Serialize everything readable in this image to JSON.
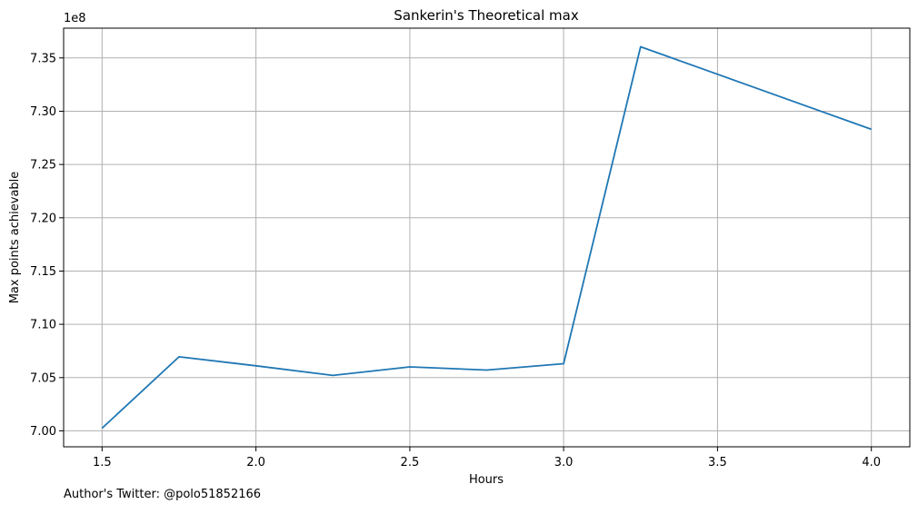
{
  "chart_data": {
    "type": "line",
    "title": "Sankerin's Theoretical max",
    "xlabel": "Hours",
    "ylabel": "Max points achievable",
    "y_offset_label": "1e8",
    "x": [
      1.5,
      1.75,
      2.0,
      2.25,
      2.5,
      2.75,
      3.0,
      3.25,
      4.0
    ],
    "y": [
      700250000,
      706950000,
      706100000,
      705200000,
      706000000,
      705700000,
      706300000,
      736050000,
      728300000
    ],
    "xlim": [
      1.375,
      4.125
    ],
    "ylim": [
      698500000,
      737800000
    ],
    "x_ticks": [
      1.5,
      2.0,
      2.5,
      3.0,
      3.5,
      4.0
    ],
    "x_tick_labels": [
      "1.5",
      "2.0",
      "2.5",
      "3.0",
      "3.5",
      "4.0"
    ],
    "y_ticks": [
      700000000,
      705000000,
      710000000,
      715000000,
      720000000,
      725000000,
      730000000,
      735000000
    ],
    "y_tick_labels": [
      "7.00",
      "7.05",
      "7.10",
      "7.15",
      "7.20",
      "7.25",
      "7.30",
      "7.35"
    ],
    "grid": true,
    "line_color": "#1f77b4"
  },
  "footer": {
    "credit": "Author's Twitter: @polo51852166"
  }
}
